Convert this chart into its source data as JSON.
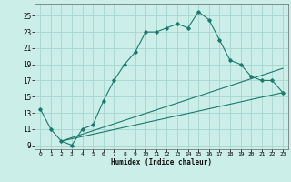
{
  "title": "",
  "xlabel": "Humidex (Indice chaleur)",
  "background_color": "#cceee8",
  "grid_color": "#aad8d0",
  "line_color": "#1a7a6e",
  "xlim": [
    -0.5,
    23.5
  ],
  "ylim": [
    8.5,
    26.5
  ],
  "yticks": [
    9,
    11,
    13,
    15,
    17,
    19,
    21,
    23,
    25
  ],
  "xticks": [
    0,
    1,
    2,
    3,
    4,
    5,
    6,
    7,
    8,
    9,
    10,
    11,
    12,
    13,
    14,
    15,
    16,
    17,
    18,
    19,
    20,
    21,
    22,
    23
  ],
  "line1_x": [
    0,
    1,
    2,
    3,
    4,
    5,
    6,
    7,
    8,
    9,
    10,
    11,
    12,
    13,
    14,
    15,
    16,
    17,
    18,
    19,
    20,
    21,
    22,
    23
  ],
  "line1_y": [
    13.5,
    11.0,
    9.5,
    9.0,
    11.0,
    11.5,
    14.5,
    17.0,
    19.0,
    20.5,
    23.0,
    23.0,
    23.5,
    24.0,
    23.5,
    25.5,
    24.5,
    22.0,
    19.5,
    19.0,
    17.5,
    17.0,
    17.0,
    15.5
  ],
  "line2_x": [
    2,
    23
  ],
  "line2_y": [
    9.5,
    18.5
  ],
  "line3_x": [
    2,
    23
  ],
  "line3_y": [
    9.5,
    15.5
  ]
}
